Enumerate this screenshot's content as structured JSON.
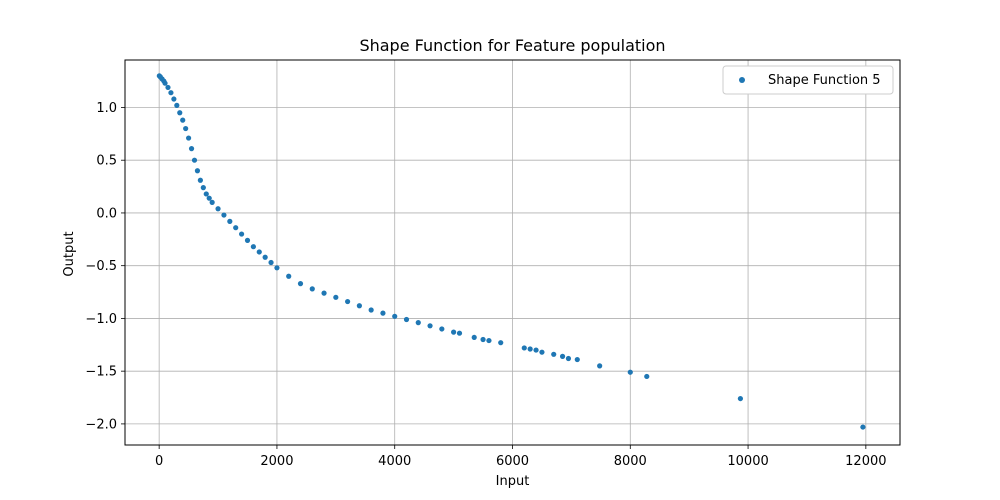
{
  "chart_data": {
    "type": "scatter",
    "title": "Shape Function for Feature population",
    "xlabel": "Input",
    "ylabel": "Output",
    "xlim": [
      -580,
      12580
    ],
    "ylim": [
      -2.2,
      1.45
    ],
    "xticks": [
      0,
      2000,
      4000,
      6000,
      8000,
      10000,
      12000
    ],
    "xtick_labels": [
      "0",
      "2000",
      "4000",
      "6000",
      "8000",
      "10000",
      "12000"
    ],
    "yticks": [
      -2.0,
      -1.5,
      -1.0,
      -0.5,
      0.0,
      0.5,
      1.0
    ],
    "ytick_labels": [
      "−2.0",
      "−1.5",
      "−1.0",
      "−0.5",
      "0.0",
      "0.5",
      "1.0"
    ],
    "grid": true,
    "legend": "top-right",
    "series": [
      {
        "name": "Shape Function 5",
        "color": "#1f77b4",
        "x": [
          3,
          20,
          50,
          80,
          100,
          150,
          200,
          250,
          300,
          350,
          400,
          450,
          500,
          550,
          600,
          650,
          700,
          750,
          800,
          850,
          900,
          1000,
          1100,
          1200,
          1300,
          1400,
          1500,
          1600,
          1700,
          1800,
          1900,
          2000,
          2200,
          2400,
          2600,
          2800,
          3000,
          3200,
          3400,
          3600,
          3800,
          4000,
          4200,
          4400,
          4600,
          4800,
          5000,
          5100,
          5350,
          5500,
          5600,
          5800,
          6200,
          6300,
          6400,
          6500,
          6700,
          6850,
          6950,
          7100,
          7480,
          8000,
          8280,
          9870,
          11950
        ],
        "y": [
          1.3,
          1.29,
          1.27,
          1.25,
          1.23,
          1.19,
          1.14,
          1.08,
          1.02,
          0.95,
          0.88,
          0.8,
          0.71,
          0.61,
          0.5,
          0.4,
          0.31,
          0.24,
          0.18,
          0.14,
          0.1,
          0.04,
          -0.02,
          -0.08,
          -0.14,
          -0.2,
          -0.26,
          -0.32,
          -0.37,
          -0.42,
          -0.47,
          -0.52,
          -0.6,
          -0.67,
          -0.72,
          -0.76,
          -0.8,
          -0.84,
          -0.88,
          -0.92,
          -0.95,
          -0.98,
          -1.01,
          -1.04,
          -1.07,
          -1.1,
          -1.13,
          -1.14,
          -1.18,
          -1.2,
          -1.21,
          -1.23,
          -1.28,
          -1.29,
          -1.3,
          -1.32,
          -1.34,
          -1.36,
          -1.38,
          -1.39,
          -1.45,
          -1.51,
          -1.55,
          -1.76,
          -2.03
        ]
      }
    ]
  }
}
